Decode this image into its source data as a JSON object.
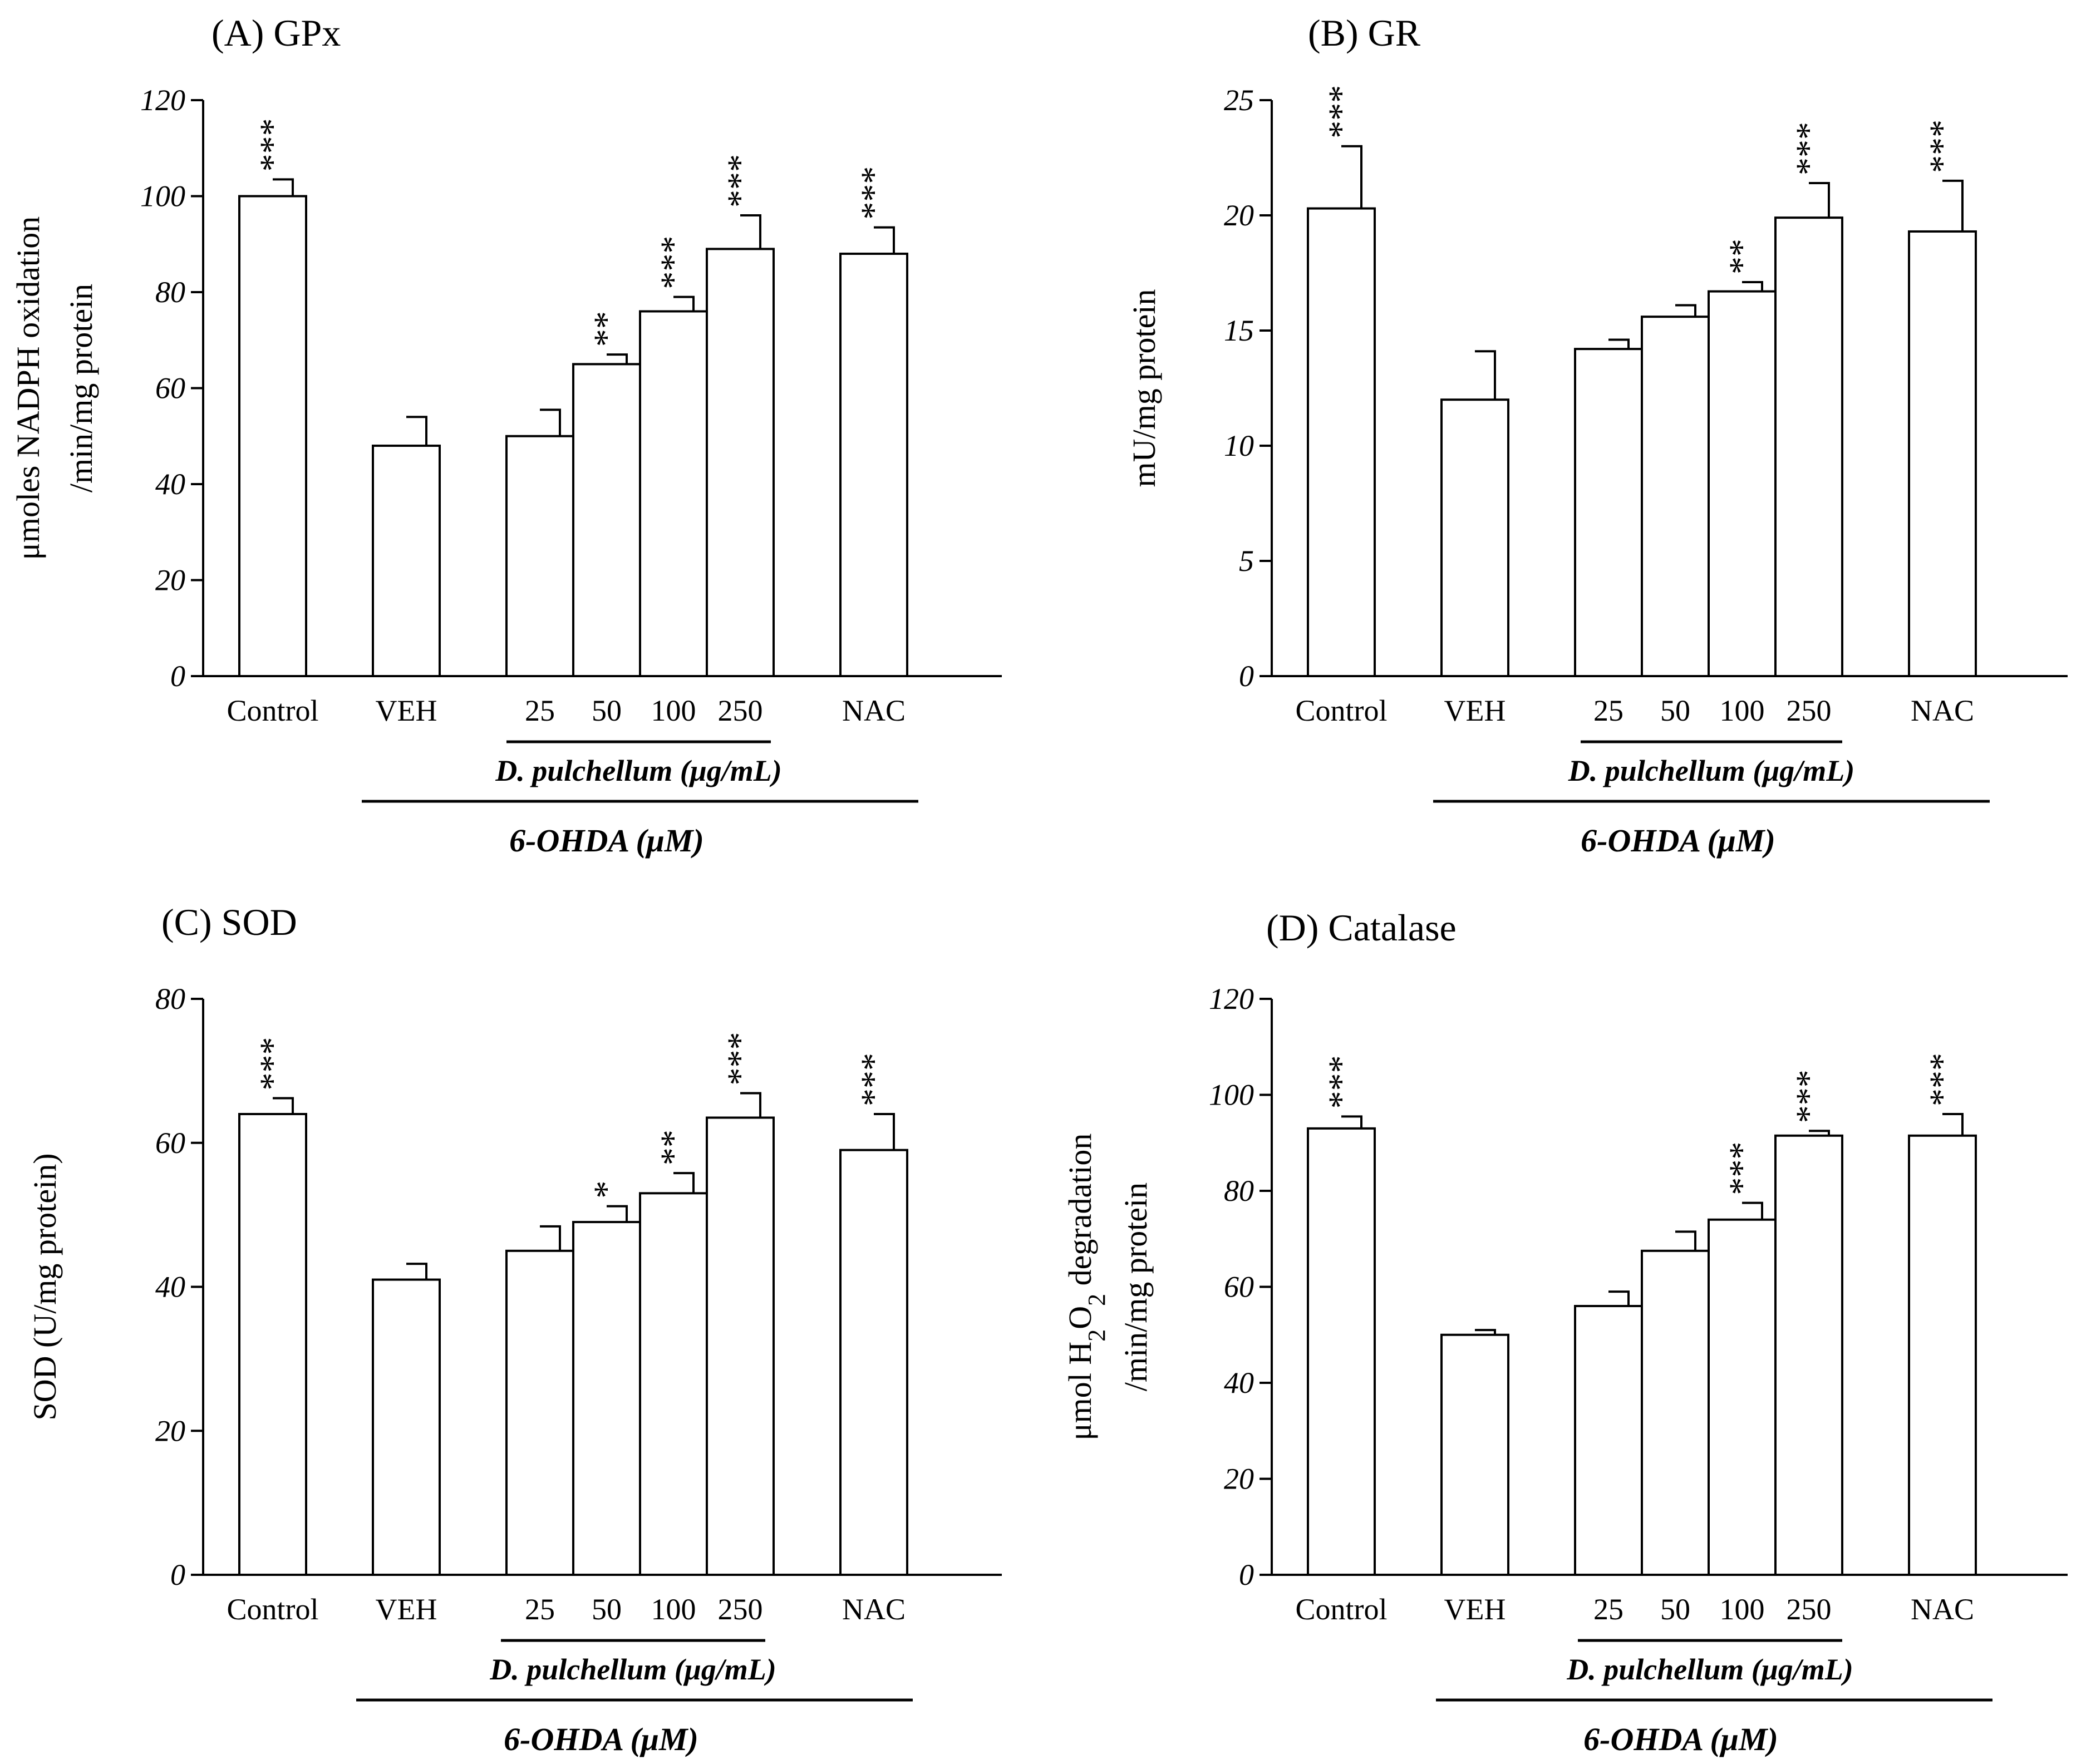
{
  "chart_data": [
    {
      "type": "bar",
      "title": "(A) GPx",
      "ylabel_lines": [
        "μmoles NADPH oxidation",
        "/min/mg protein"
      ],
      "ylim": [
        0,
        120
      ],
      "yticks": [
        0,
        20,
        40,
        60,
        80,
        100,
        120
      ],
      "categories": [
        "Control",
        "VEH",
        "25",
        "50",
        "100",
        "250",
        "NAC"
      ],
      "values": [
        100,
        48,
        50,
        65,
        76,
        89,
        88
      ],
      "errors": [
        3.5,
        6,
        5.5,
        2,
        3,
        7,
        5.5
      ],
      "significance": [
        "***",
        "",
        "",
        "**",
        "***",
        "***",
        "***"
      ],
      "group_label": "D. pulchellum (μg/mL)",
      "treatment_label": "6-OHDA (μM)"
    },
    {
      "type": "bar",
      "title": "(B) GR",
      "ylabel_lines": [
        "mU/mg protein"
      ],
      "ylim": [
        0,
        25
      ],
      "yticks": [
        0,
        5,
        10,
        15,
        20,
        25
      ],
      "categories": [
        "Control",
        "VEH",
        "25",
        "50",
        "100",
        "250",
        "NAC"
      ],
      "values": [
        20.3,
        12.0,
        14.2,
        15.6,
        16.7,
        19.9,
        19.3
      ],
      "errors": [
        2.7,
        2.1,
        0.4,
        0.5,
        0.4,
        1.5,
        2.2
      ],
      "significance": [
        "***",
        "",
        "",
        "",
        "**",
        "***",
        "***"
      ],
      "group_label": "D. pulchellum (μg/mL)",
      "treatment_label": "6-OHDA (μM)"
    },
    {
      "type": "bar",
      "title": "(C) SOD",
      "ylabel_lines": [
        "SOD (U/mg protein)"
      ],
      "ylim": [
        0,
        80
      ],
      "yticks": [
        0,
        20,
        40,
        60,
        80
      ],
      "categories": [
        "Control",
        "VEH",
        "25",
        "50",
        "100",
        "250",
        "NAC"
      ],
      "values": [
        64,
        41,
        45,
        49,
        53,
        63.5,
        59
      ],
      "errors": [
        2.2,
        2.2,
        3.4,
        2.2,
        2.8,
        3.4,
        5
      ],
      "significance": [
        "***",
        "",
        "",
        "*",
        "**",
        "***",
        "***"
      ],
      "group_label": "D. pulchellum (μg/mL)",
      "treatment_label": "6-OHDA (μM)"
    },
    {
      "type": "bar",
      "title": "(D) Catalase",
      "ylabel_lines": [
        "μmol H2O2 degradation",
        "/min/mg protein"
      ],
      "ylim": [
        0,
        120
      ],
      "yticks": [
        0,
        20,
        40,
        60,
        80,
        100,
        120
      ],
      "categories": [
        "Control",
        "VEH",
        "25",
        "50",
        "100",
        "250",
        "NAC"
      ],
      "values": [
        93,
        50,
        56,
        67.5,
        74,
        91.5,
        91.5
      ],
      "errors": [
        2.5,
        1,
        3,
        4,
        3.5,
        1,
        4.5
      ],
      "significance": [
        "***",
        "",
        "",
        "",
        "***",
        "***",
        "***"
      ],
      "group_label": "D. pulchellum (μg/mL)",
      "treatment_label": "6-OHDA (μM)"
    }
  ]
}
